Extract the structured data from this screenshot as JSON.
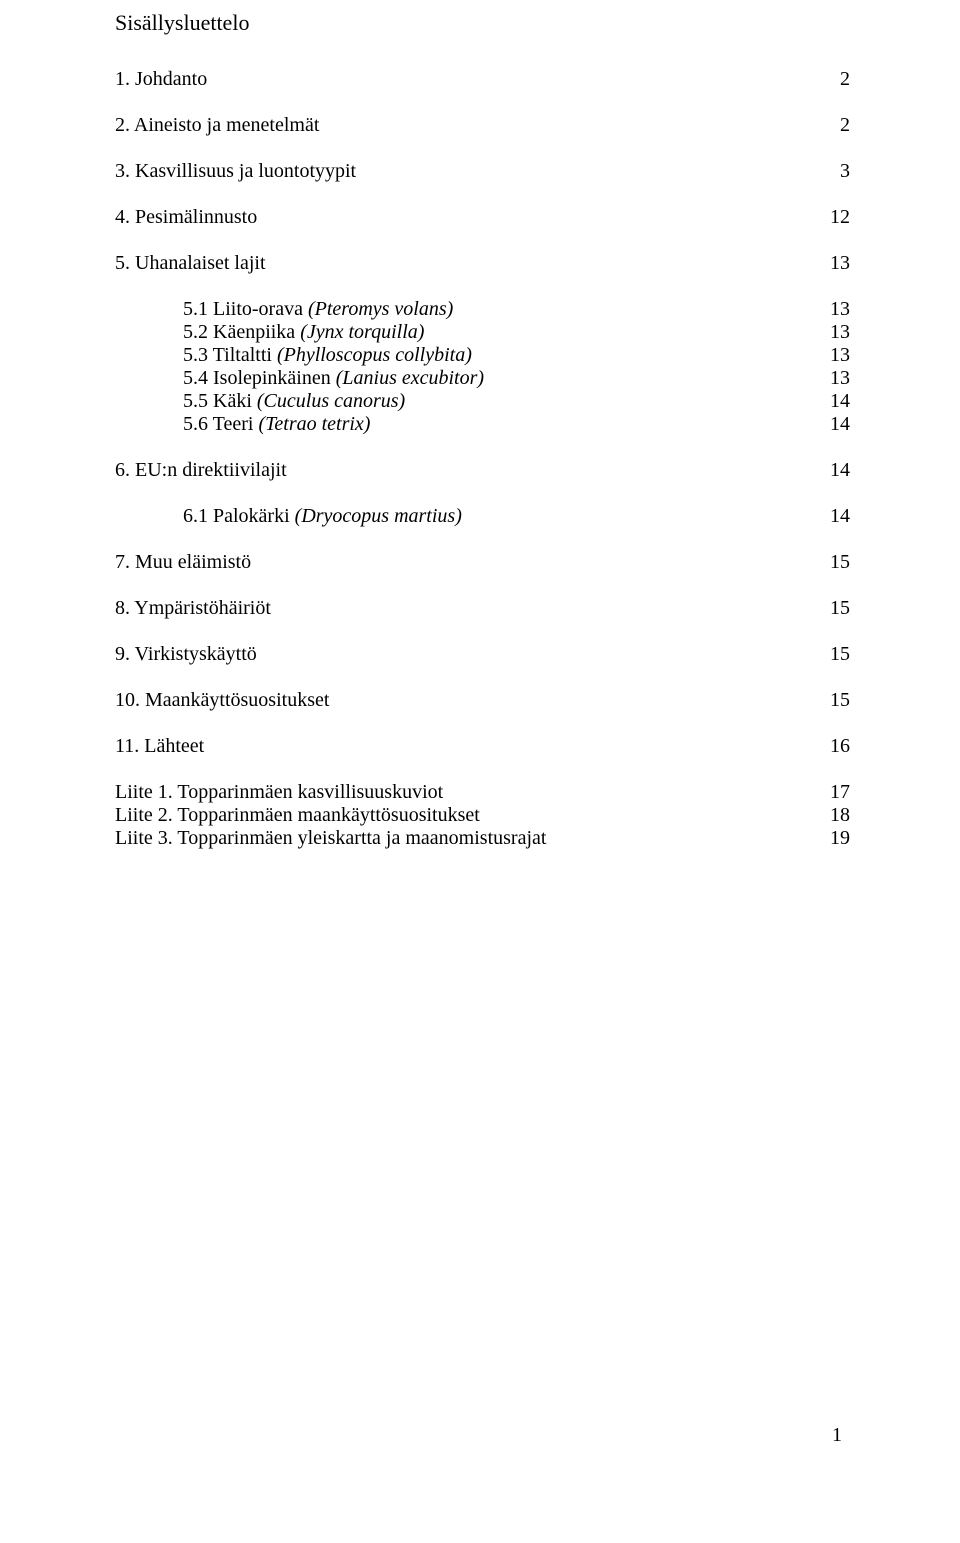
{
  "title": "Sisällysluettelo",
  "font": {
    "family": "Times New Roman",
    "title_size_pt": 22,
    "body_size_pt": 20,
    "color": "#000000",
    "background": "#ffffff"
  },
  "entries": [
    {
      "level": 0,
      "label": "1. Johdanto",
      "page": "2"
    },
    {
      "level": 0,
      "label": "2. Aineisto ja menetelmät",
      "page": "2"
    },
    {
      "level": 0,
      "label": "3. Kasvillisuus ja luontotyypit",
      "page": "3"
    },
    {
      "level": 0,
      "label": "4. Pesimälinnusto",
      "page": "12"
    },
    {
      "level": 0,
      "label": "5. Uhanalaiset lajit",
      "page": "13"
    }
  ],
  "sub5": [
    {
      "prefix": "5.1 Liito-orava ",
      "italic": "(Pteromys volans)",
      "page": "13"
    },
    {
      "prefix": "5.2 Käenpiika ",
      "italic": "(Jynx torquilla)",
      "page": "13"
    },
    {
      "prefix": "5.3 Tiltaltti ",
      "italic": "(Phylloscopus collybita)",
      "page": "13"
    },
    {
      "prefix": "5.4 Isolepinkäinen ",
      "italic": "(Lanius excubitor)",
      "page": "13"
    },
    {
      "prefix": "5.5 Käki ",
      "italic": "(Cuculus canorus)",
      "page": "14"
    },
    {
      "prefix": "5.6 Teeri ",
      "italic": "(Tetrao tetrix)",
      "page": "14"
    }
  ],
  "entry6": {
    "label": "6. EU:n direktiivilajit",
    "page": "14"
  },
  "sub6": [
    {
      "prefix": "6.1 Palokärki ",
      "italic": "(Dryocopus martius)",
      "page": "14"
    }
  ],
  "entries2": [
    {
      "label": "7. Muu eläimistö",
      "page": "15"
    },
    {
      "label": "8. Ympäristöhäiriöt",
      "page": "15"
    },
    {
      "label": "9. Virkistyskäyttö",
      "page": "15"
    },
    {
      "label": "10. Maankäyttösuositukset",
      "page": "15"
    },
    {
      "label": "11. Lähteet",
      "page": "16"
    }
  ],
  "attachments": [
    {
      "label": "Liite 1. Topparinmäen kasvillisuuskuviot",
      "page": "17"
    },
    {
      "label": "Liite 2. Topparinmäen maankäyttösuositukset",
      "page": "18"
    },
    {
      "label": "Liite 3. Topparinmäen yleiskartta ja maanomistusrajat",
      "page": "19"
    }
  ],
  "pageNumber": "1"
}
